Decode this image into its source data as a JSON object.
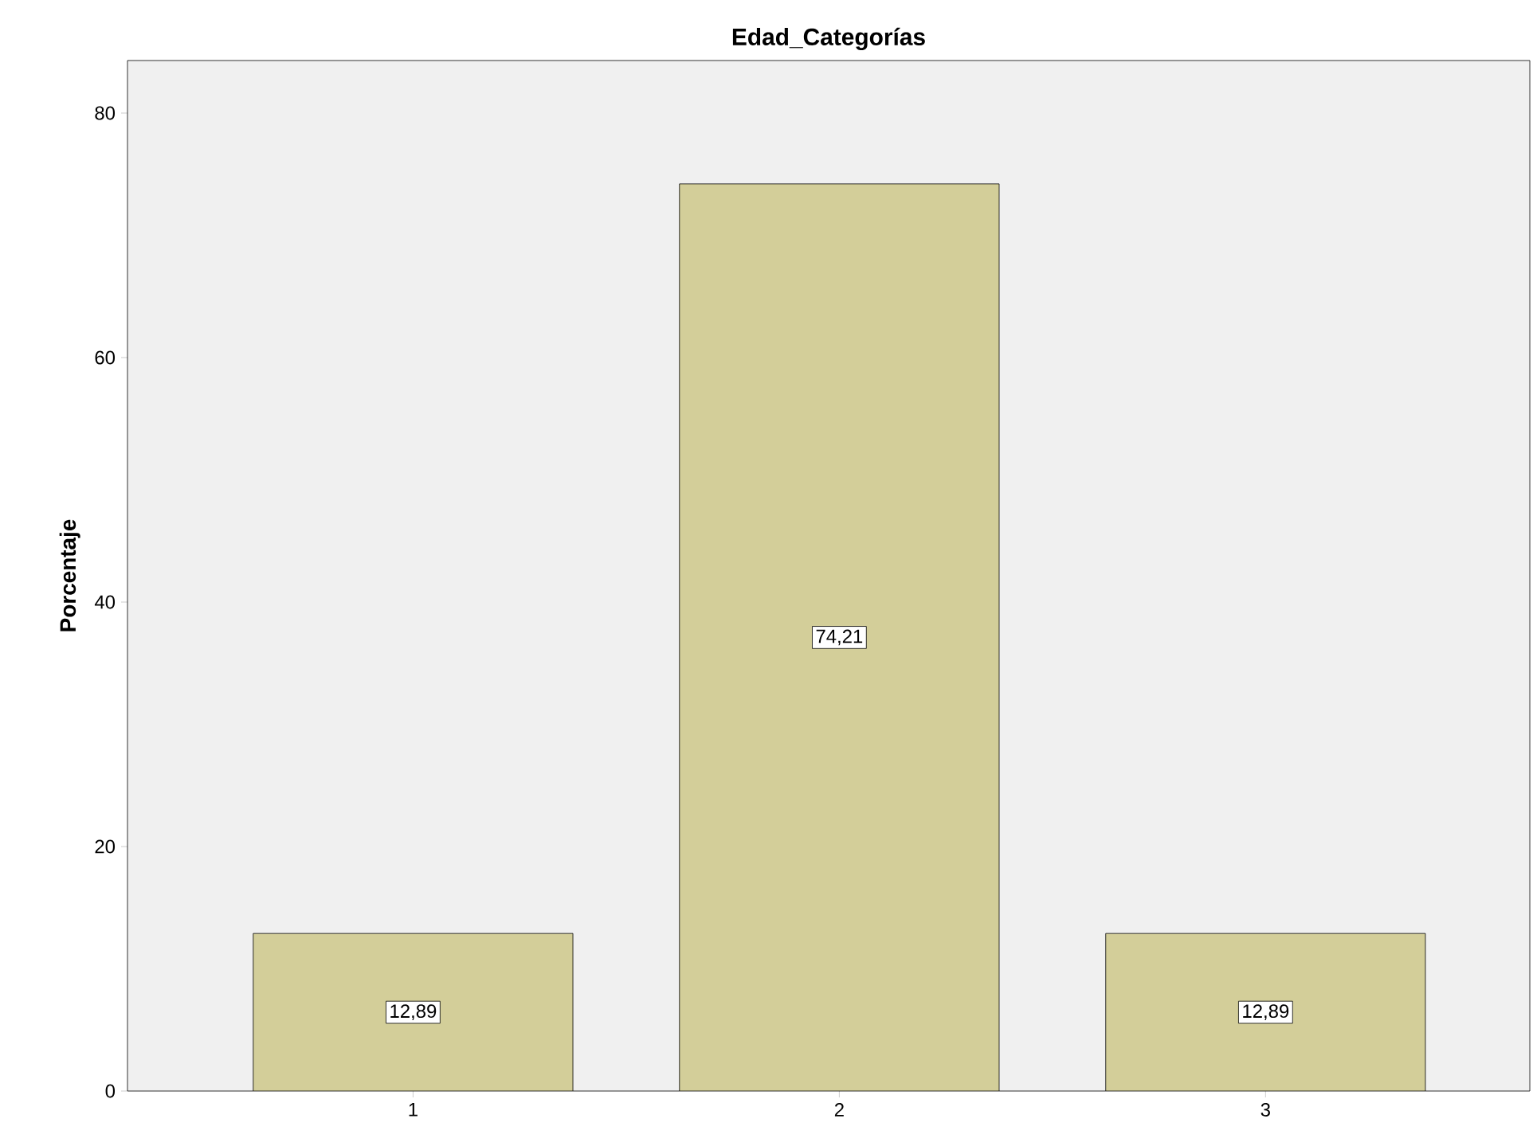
{
  "chart_data": {
    "type": "bar",
    "title": "Edad_Categorías",
    "ylabel": "Porcentaje",
    "categories": [
      "1",
      "2",
      "3"
    ],
    "values": [
      12.89,
      74.21,
      12.89
    ],
    "value_labels": [
      "12,89",
      "74,21",
      "12,89"
    ],
    "color": "#d3ce99",
    "ylim": [
      0,
      84.3
    ],
    "yticks": [
      0,
      20,
      40,
      60,
      80
    ]
  }
}
